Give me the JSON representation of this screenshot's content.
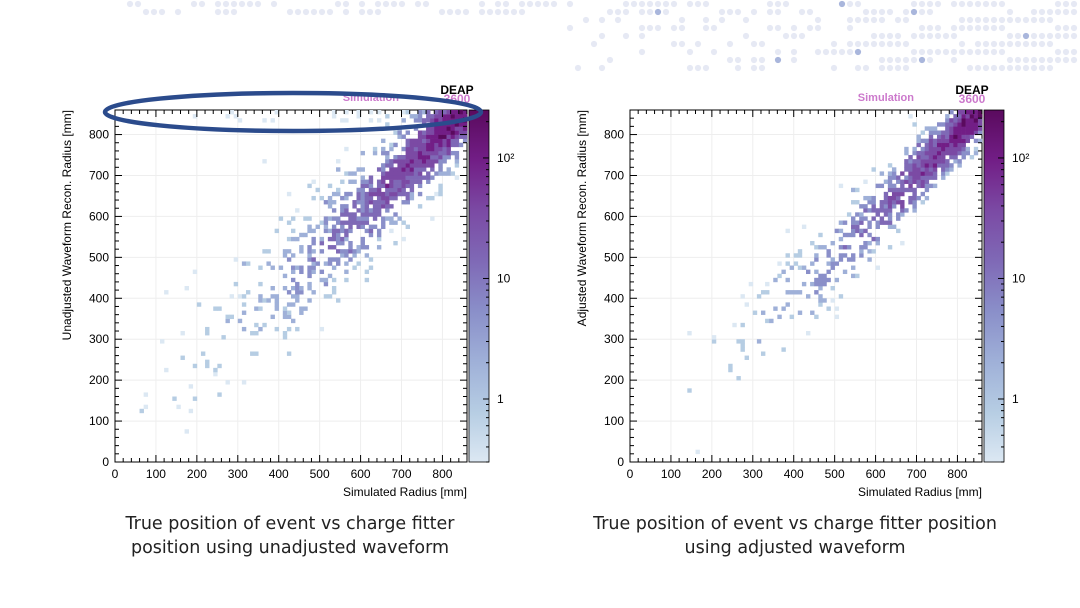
{
  "background": "#ffffff",
  "dot_colors": {
    "light": "#e6e9f4",
    "accent": "#a9b6dc"
  },
  "highlight_color": "#2b4b8c",
  "colormap": [
    "#dce8f3",
    "#b6cde3",
    "#9fb0d8",
    "#8a8fc9",
    "#7f69b6",
    "#7b4aa4",
    "#721e86",
    "#5a0a5e"
  ],
  "chart_data": [
    {
      "type": "heatmap",
      "xlabel": "Simulated Radius [mm]",
      "ylabel": "Unadjusted Waveform Recon. Radius [mm]",
      "xlim": [
        0,
        860
      ],
      "ylim": [
        0,
        860
      ],
      "xticks": [
        0,
        100,
        200,
        300,
        400,
        500,
        600,
        700,
        800
      ],
      "yticks": [
        0,
        100,
        200,
        300,
        400,
        500,
        600,
        700,
        800
      ],
      "z_scale": "log",
      "zlim": [
        0.3,
        250
      ],
      "zticks": [
        {
          "value": 1,
          "label": "1"
        },
        {
          "value": 10,
          "label": "10"
        },
        {
          "value": 100,
          "label": "10²"
        }
      ],
      "trend": "y ≈ x diagonal correlation, wider scatter at low radius, band of events near 850 mm",
      "highlight": "top-edge band of reconstructed radius ≈ 850 mm circled",
      "labels": {
        "simulation": "Simulation",
        "experiment": "DEAP",
        "number": "3600"
      }
    },
    {
      "type": "heatmap",
      "xlabel": "Simulated Radius [mm]",
      "ylabel": "Adjusted Waveform Recon. Radius [mm]",
      "xlim": [
        0,
        860
      ],
      "ylim": [
        0,
        860
      ],
      "xticks": [
        0,
        100,
        200,
        300,
        400,
        500,
        600,
        700,
        800
      ],
      "yticks": [
        0,
        100,
        200,
        300,
        400,
        500,
        600,
        700,
        800
      ],
      "z_scale": "log",
      "zlim": [
        0.3,
        250
      ],
      "zticks": [
        {
          "value": 1,
          "label": "1"
        },
        {
          "value": 10,
          "label": "10"
        },
        {
          "value": 100,
          "label": "10²"
        }
      ],
      "trend": "y ≈ x diagonal correlation, tighter than unadjusted",
      "labels": {
        "simulation": "Simulation",
        "experiment": "DEAP",
        "number": "3600"
      }
    }
  ],
  "captions": {
    "left": [
      "True position of event vs charge fitter",
      "position using unadjusted waveform"
    ],
    "right": [
      "True position of event vs charge fitter position",
      "using adjusted waveform"
    ]
  }
}
